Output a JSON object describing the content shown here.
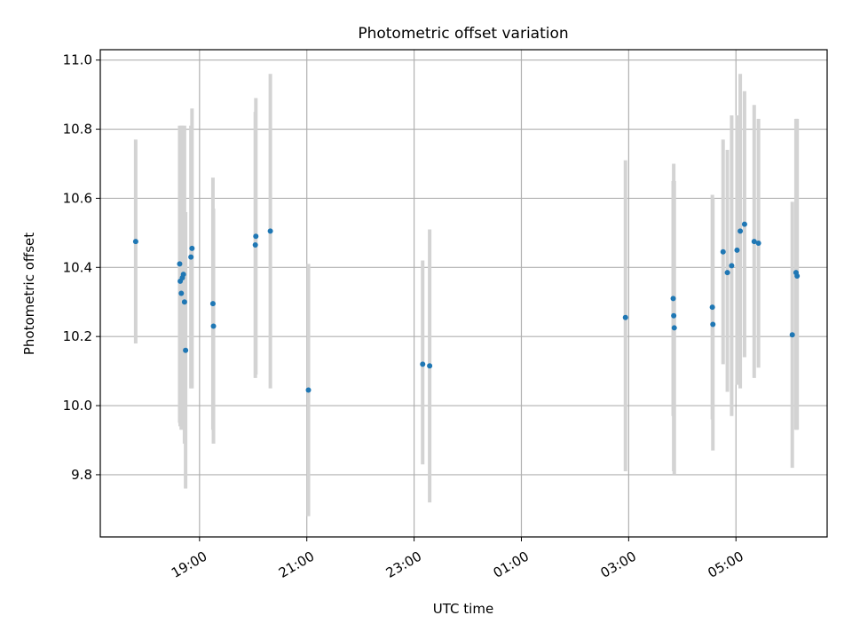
{
  "chart_data": {
    "type": "scatter",
    "title": "Photometric offset variation",
    "xlabel": "UTC time",
    "ylabel": "Photometric offset",
    "grid": true,
    "xlim_hours": [
      17.15,
      30.7
    ],
    "ylim": [
      9.62,
      11.03
    ],
    "x_ticks": [
      {
        "value": 19.0,
        "label": "19:00"
      },
      {
        "value": 21.0,
        "label": "21:00"
      },
      {
        "value": 23.0,
        "label": "23:00"
      },
      {
        "value": 25.0,
        "label": "01:00"
      },
      {
        "value": 27.0,
        "label": "03:00"
      },
      {
        "value": 29.0,
        "label": "05:00"
      }
    ],
    "y_ticks": [
      {
        "value": 9.8,
        "label": "9.8"
      },
      {
        "value": 10.0,
        "label": "10.0"
      },
      {
        "value": 10.2,
        "label": "10.2"
      },
      {
        "value": 10.4,
        "label": "10.4"
      },
      {
        "value": 10.6,
        "label": "10.6"
      },
      {
        "value": 10.8,
        "label": "10.8"
      },
      {
        "value": 11.0,
        "label": "11.0"
      }
    ],
    "colors": {
      "points": "#1f77b4",
      "errorbars": "#d3d3d3",
      "grid": "#b0b0b0"
    },
    "points": [
      {
        "t": 17.81,
        "y": 10.475,
        "lo": 10.18,
        "hi": 10.77
      },
      {
        "t": 18.63,
        "y": 10.41,
        "lo": 9.95,
        "hi": 10.81
      },
      {
        "t": 18.64,
        "y": 10.36,
        "lo": 9.94,
        "hi": 10.8
      },
      {
        "t": 18.66,
        "y": 10.325,
        "lo": 9.93,
        "hi": 10.81
      },
      {
        "t": 18.68,
        "y": 10.37,
        "lo": 9.96,
        "hi": 10.81
      },
      {
        "t": 18.7,
        "y": 10.38,
        "lo": 9.94,
        "hi": 10.8
      },
      {
        "t": 18.72,
        "y": 10.3,
        "lo": 9.89,
        "hi": 10.81
      },
      {
        "t": 18.74,
        "y": 10.16,
        "lo": 9.76,
        "hi": 10.56
      },
      {
        "t": 18.84,
        "y": 10.43,
        "lo": 10.05,
        "hi": 10.81
      },
      {
        "t": 18.86,
        "y": 10.455,
        "lo": 10.05,
        "hi": 10.86
      },
      {
        "t": 19.25,
        "y": 10.295,
        "lo": 9.93,
        "hi": 10.66
      },
      {
        "t": 19.26,
        "y": 10.23,
        "lo": 9.89,
        "hi": 10.57
      },
      {
        "t": 20.04,
        "y": 10.465,
        "lo": 10.08,
        "hi": 10.85
      },
      {
        "t": 20.05,
        "y": 10.49,
        "lo": 10.09,
        "hi": 10.89
      },
      {
        "t": 20.32,
        "y": 10.505,
        "lo": 10.05,
        "hi": 10.96
      },
      {
        "t": 21.03,
        "y": 10.045,
        "lo": 9.68,
        "hi": 10.41
      },
      {
        "t": 23.16,
        "y": 10.12,
        "lo": 9.83,
        "hi": 10.42
      },
      {
        "t": 23.29,
        "y": 10.115,
        "lo": 9.72,
        "hi": 10.51
      },
      {
        "t": 26.94,
        "y": 10.255,
        "lo": 9.81,
        "hi": 10.71
      },
      {
        "t": 27.83,
        "y": 10.31,
        "lo": 9.97,
        "hi": 10.65
      },
      {
        "t": 27.84,
        "y": 10.26,
        "lo": 9.81,
        "hi": 10.7
      },
      {
        "t": 27.85,
        "y": 10.225,
        "lo": 9.8,
        "hi": 10.65
      },
      {
        "t": 28.56,
        "y": 10.285,
        "lo": 9.96,
        "hi": 10.61
      },
      {
        "t": 28.57,
        "y": 10.235,
        "lo": 9.87,
        "hi": 10.6
      },
      {
        "t": 28.76,
        "y": 10.445,
        "lo": 10.12,
        "hi": 10.77
      },
      {
        "t": 28.84,
        "y": 10.385,
        "lo": 10.04,
        "hi": 10.74
      },
      {
        "t": 28.92,
        "y": 10.405,
        "lo": 9.97,
        "hi": 10.84
      },
      {
        "t": 29.02,
        "y": 10.45,
        "lo": 10.06,
        "hi": 10.84
      },
      {
        "t": 29.08,
        "y": 10.505,
        "lo": 10.05,
        "hi": 10.96
      },
      {
        "t": 29.16,
        "y": 10.525,
        "lo": 10.14,
        "hi": 10.91
      },
      {
        "t": 29.34,
        "y": 10.475,
        "lo": 10.08,
        "hi": 10.87
      },
      {
        "t": 29.42,
        "y": 10.47,
        "lo": 10.11,
        "hi": 10.83
      },
      {
        "t": 30.05,
        "y": 10.205,
        "lo": 9.82,
        "hi": 10.59
      },
      {
        "t": 30.12,
        "y": 10.385,
        "lo": 9.93,
        "hi": 10.83
      },
      {
        "t": 30.14,
        "y": 10.375,
        "lo": 9.93,
        "hi": 10.83
      }
    ]
  }
}
